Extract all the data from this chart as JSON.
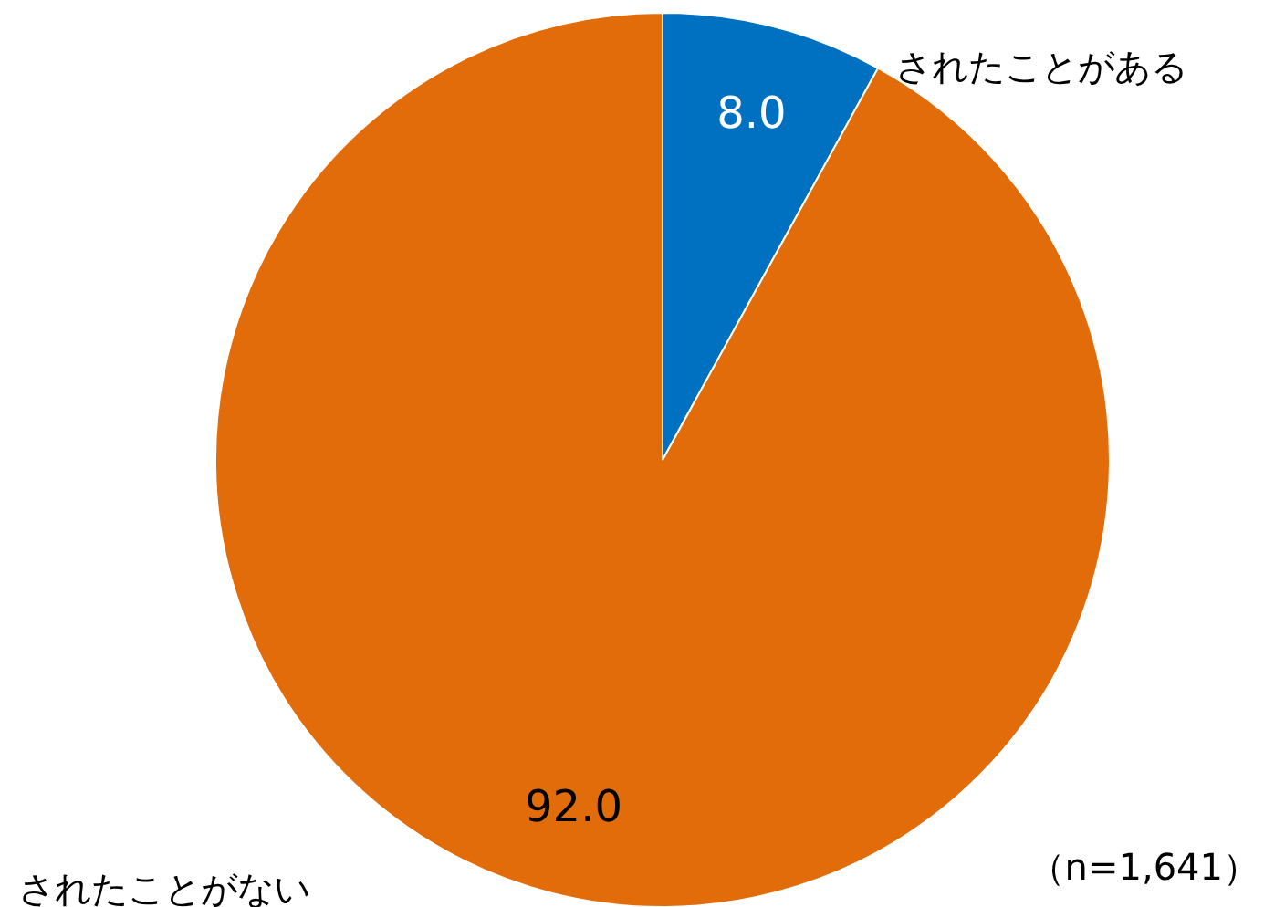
{
  "chart_data": {
    "type": "pie",
    "categories": [
      "されたことがある",
      "されたことがない"
    ],
    "values": [
      8.0,
      92.0
    ],
    "value_labels": [
      "8.0",
      "92.0"
    ],
    "colors": [
      "#0070c0",
      "#e36c0a"
    ],
    "annotations": [
      "（n=1,641）"
    ]
  }
}
